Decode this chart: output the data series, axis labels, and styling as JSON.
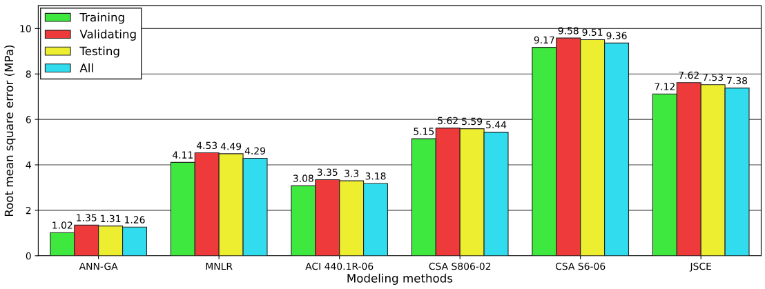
{
  "chart_data": {
    "type": "bar",
    "xlabel": "Modeling methods",
    "ylabel": "Root mean square error (MPa)",
    "categories": [
      "ANN-GA",
      "MNLR",
      "ACI 440.1R-06",
      "CSA S806-02",
      "CSA S6-06",
      "JSCE"
    ],
    "series": [
      {
        "name": "Training",
        "color": "#3ee83e",
        "values": [
          1.02,
          4.11,
          3.08,
          5.15,
          9.17,
          7.12
        ]
      },
      {
        "name": "Validating",
        "color": "#ee3a3a",
        "values": [
          1.35,
          4.53,
          3.35,
          5.62,
          9.58,
          7.62
        ]
      },
      {
        "name": "Testing",
        "color": "#eeee30",
        "values": [
          1.31,
          4.49,
          3.3,
          5.59,
          9.51,
          7.53
        ]
      },
      {
        "name": "All",
        "color": "#30dcee",
        "values": [
          1.26,
          4.29,
          3.18,
          5.44,
          9.36,
          7.38
        ]
      }
    ],
    "ylim": [
      0,
      11
    ],
    "yticks": [
      0,
      2,
      4,
      6,
      8,
      10
    ],
    "grid": "y",
    "legend": "top left",
    "data_labels": true
  }
}
